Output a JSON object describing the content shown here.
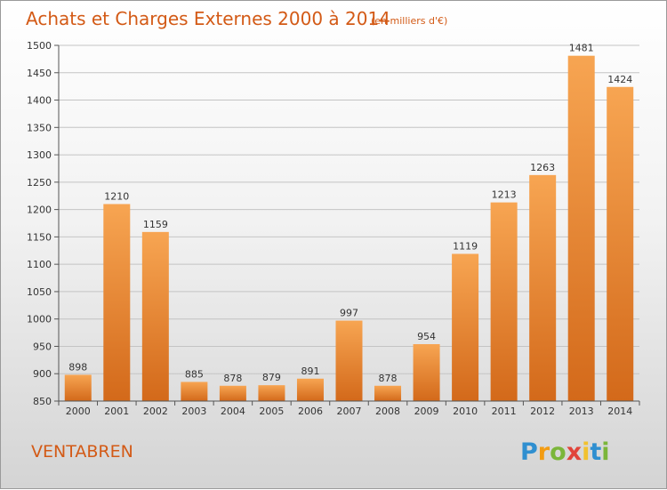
{
  "chart_data": {
    "type": "bar",
    "title": "Achats et Charges Externes 2000 à 2014",
    "subtitle": "(en milliers d'€)",
    "categories": [
      "2000",
      "2001",
      "2002",
      "2003",
      "2004",
      "2005",
      "2006",
      "2007",
      "2008",
      "2009",
      "2010",
      "2011",
      "2012",
      "2013",
      "2014"
    ],
    "values": [
      898,
      1210,
      1159,
      885,
      878,
      879,
      891,
      997,
      878,
      954,
      1119,
      1213,
      1263,
      1481,
      1424
    ],
    "ylim": [
      850,
      1500
    ],
    "yticks": [
      850,
      900,
      950,
      1000,
      1050,
      1100,
      1150,
      1200,
      1250,
      1300,
      1350,
      1400,
      1450,
      1500
    ],
    "grid": true,
    "bar_color": "#f0892f"
  },
  "footer": {
    "town": "VENTABREN",
    "logo": {
      "letters": [
        "P",
        "r",
        "o",
        "x",
        "i",
        "t",
        "i"
      ],
      "colors": [
        "#2f8fd0",
        "#f39c12",
        "#7bb63a",
        "#e1443a",
        "#f2c12e",
        "#2f8fd0",
        "#7bb63a"
      ]
    }
  },
  "colors": {
    "accent": "#d35a16"
  }
}
